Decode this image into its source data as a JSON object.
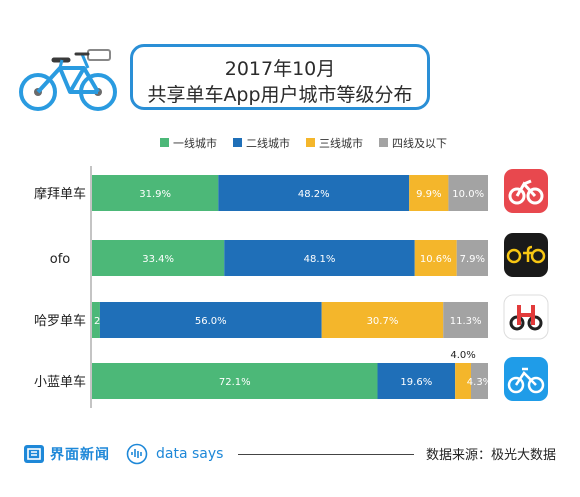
{
  "header": {
    "title_line1": "2017年10月",
    "title_line2": "共享单车App用户城市等级分布",
    "bike_icon": "bike-icon"
  },
  "chart_data": {
    "type": "bar",
    "orientation": "horizontal",
    "stacked": true,
    "categories": [
      "摩拜单车",
      "ofo",
      "哈罗单车",
      "小蓝单车"
    ],
    "series": [
      {
        "name": "一线城市",
        "color": "#4cb878",
        "values": [
          31.9,
          33.4,
          2.0,
          72.1
        ]
      },
      {
        "name": "二线城市",
        "color": "#1f6fb8",
        "values": [
          48.2,
          48.1,
          56.0,
          19.6
        ]
      },
      {
        "name": "三线城市",
        "color": "#f4b62b",
        "values": [
          9.9,
          10.6,
          30.7,
          4.0
        ]
      },
      {
        "name": "四线及以下",
        "color": "#a3a3a3",
        "values": [
          10.0,
          7.9,
          11.3,
          4.3
        ]
      }
    ],
    "labels": [
      [
        "31.9%",
        "48.2%",
        "9.9%",
        "10.0%"
      ],
      [
        "33.4%",
        "48.1%",
        "10.6%",
        "7.9%"
      ],
      [
        "2.0%",
        "56.0%",
        "30.7%",
        "11.3%"
      ],
      [
        "72.1%",
        "19.6%",
        "4.0%",
        "4.3%"
      ]
    ],
    "legend_position": "top",
    "grid": false
  },
  "app_icons": [
    {
      "name": "mobike-icon",
      "bg": "#e8484e",
      "fg": "#ffffff"
    },
    {
      "name": "ofo-icon",
      "bg": "#1a1a1a",
      "fg": "#f7c613"
    },
    {
      "name": "hellobike-icon",
      "bg": "#ffffff",
      "fg": "#e23b3b"
    },
    {
      "name": "bluegogo-icon",
      "bg": "#1f9ce8",
      "fg": "#ffffff"
    }
  ],
  "footer": {
    "brand": "界面新闻",
    "data_says": "data says",
    "source": "数据来源：极光大数据"
  }
}
